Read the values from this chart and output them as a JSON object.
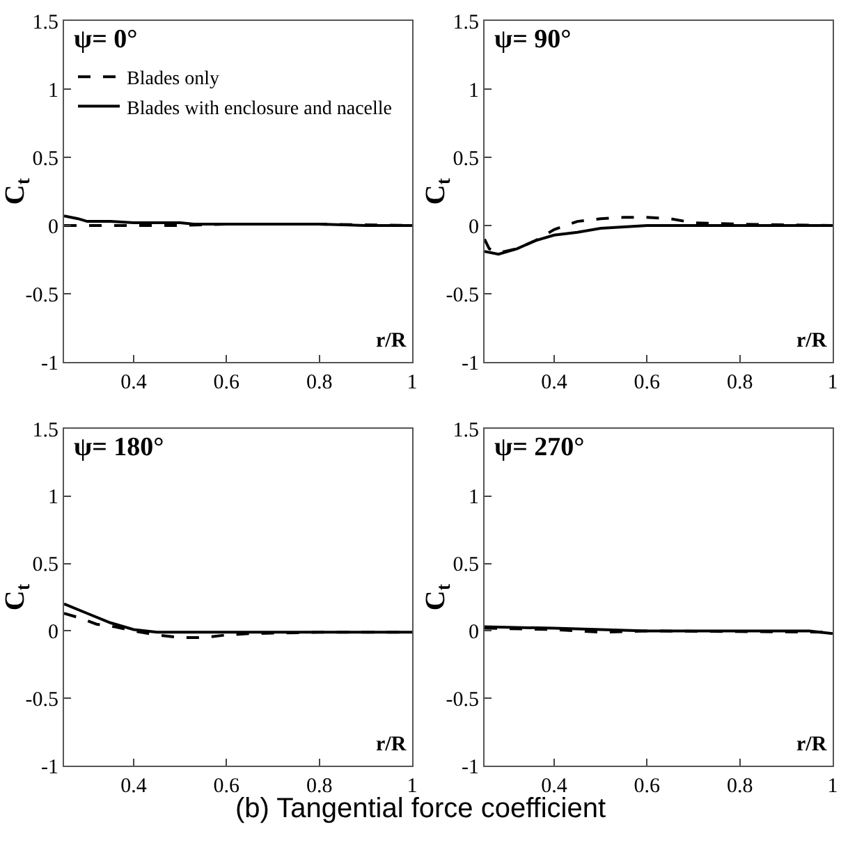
{
  "chart_data": [
    {
      "type": "line",
      "title": "ψ= 0°",
      "xlabel": "r/R",
      "ylabel": "C$_{t}$",
      "xlim": [
        0.25,
        1
      ],
      "xticks": [
        0.4,
        0.6,
        0.8,
        1
      ],
      "ylim": [
        -1,
        1.5
      ],
      "yticks": [
        -1,
        -0.5,
        0,
        0.5,
        1,
        1.5
      ],
      "grid": false,
      "legend": "top left",
      "series": [
        {
          "name": "Blades only",
          "color": "#000000",
          "line_style": "dashed",
          "x": [
            0.25,
            0.3,
            0.4,
            0.5,
            0.6,
            0.8,
            1
          ],
          "values": [
            0,
            0,
            0,
            0,
            0.01,
            0.01,
            0
          ]
        },
        {
          "name": "Blades with enclosure and nacelle",
          "color": "#000000",
          "line_style": "solid",
          "x": [
            0.25,
            0.28,
            0.3,
            0.35,
            0.4,
            0.5,
            0.53,
            0.6,
            0.8,
            0.9,
            1
          ],
          "values": [
            0.07,
            0.05,
            0.03,
            0.03,
            0.02,
            0.02,
            0.01,
            0.01,
            0.01,
            0,
            0
          ]
        }
      ]
    },
    {
      "type": "line",
      "title": "ψ= 90°",
      "xlabel": "r/R",
      "ylabel": "C$_{t}$",
      "xlim": [
        0.25,
        1
      ],
      "xticks": [
        0.4,
        0.6,
        0.8,
        1
      ],
      "ylim": [
        -1,
        1.5
      ],
      "yticks": [
        -1,
        -0.5,
        0,
        0.5,
        1,
        1.5
      ],
      "grid": false,
      "series": [
        {
          "color": "#000000",
          "line_style": "dashed",
          "x": [
            0.25,
            0.26,
            0.28,
            0.32,
            0.36,
            0.4,
            0.45,
            0.5,
            0.55,
            0.6,
            0.65,
            0.7,
            0.8,
            1
          ],
          "values": [
            -0.1,
            -0.17,
            -0.2,
            -0.17,
            -0.11,
            -0.03,
            0.03,
            0.05,
            0.06,
            0.06,
            0.05,
            0.02,
            0.01,
            0
          ]
        },
        {
          "color": "#000000",
          "line_style": "solid",
          "x": [
            0.25,
            0.28,
            0.32,
            0.36,
            0.4,
            0.45,
            0.5,
            0.55,
            0.6,
            0.8,
            1
          ],
          "values": [
            -0.19,
            -0.21,
            -0.17,
            -0.11,
            -0.07,
            -0.05,
            -0.02,
            -0.01,
            0,
            0,
            0
          ]
        }
      ]
    },
    {
      "type": "line",
      "title": "ψ= 180°",
      "xlabel": "r/R",
      "ylabel": "C$_{t}$",
      "xlim": [
        0.25,
        1
      ],
      "xticks": [
        0.4,
        0.6,
        0.8,
        1
      ],
      "ylim": [
        -1,
        1.5
      ],
      "yticks": [
        -1,
        -0.5,
        0,
        0.5,
        1,
        1.5
      ],
      "grid": false,
      "series": [
        {
          "color": "#000000",
          "line_style": "dashed",
          "x": [
            0.25,
            0.28,
            0.32,
            0.36,
            0.4,
            0.45,
            0.5,
            0.55,
            0.6,
            0.65,
            0.8,
            1
          ],
          "values": [
            0.13,
            0.1,
            0.05,
            0.03,
            0,
            -0.03,
            -0.05,
            -0.05,
            -0.03,
            -0.02,
            -0.01,
            -0.01
          ]
        },
        {
          "color": "#000000",
          "line_style": "solid",
          "x": [
            0.25,
            0.3,
            0.35,
            0.4,
            0.45,
            0.6,
            0.8,
            1
          ],
          "values": [
            0.2,
            0.13,
            0.06,
            0.01,
            -0.01,
            -0.01,
            -0.01,
            -0.01
          ]
        }
      ]
    },
    {
      "type": "line",
      "title": "ψ= 270°",
      "xlabel": "r/R",
      "ylabel": "C$_{t}$",
      "xlim": [
        0.25,
        1
      ],
      "xticks": [
        0.4,
        0.6,
        0.8,
        1
      ],
      "ylim": [
        -1,
        1.5
      ],
      "yticks": [
        -1,
        -0.5,
        0,
        0.5,
        1,
        1.5
      ],
      "grid": false,
      "annotations": [
        "(b) Tangential force coefficient"
      ],
      "series": [
        {
          "color": "#000000",
          "line_style": "dashed",
          "x": [
            0.25,
            0.4,
            0.5,
            0.6,
            1
          ],
          "values": [
            0.02,
            0.01,
            -0.01,
            0,
            -0.01
          ]
        },
        {
          "color": "#000000",
          "line_style": "solid",
          "x": [
            0.25,
            0.4,
            0.5,
            0.6,
            0.8,
            0.95,
            1
          ],
          "values": [
            0.03,
            0.02,
            0.01,
            0,
            0,
            0,
            -0.02
          ]
        }
      ]
    }
  ]
}
